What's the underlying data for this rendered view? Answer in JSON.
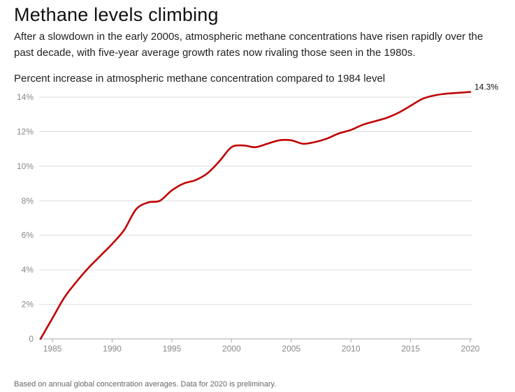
{
  "header": {
    "title": "Methane levels climbing",
    "subtitle": "After a slowdown in the early 2000s, atmospheric methane concentrations have risen rapidly over the past decade, with five-year average growth rates now rivaling those seen in the 1980s.",
    "chart_label": "Percent increase in atmospheric methane concentration compared to 1984 level"
  },
  "footer": {
    "note": "Based on annual global concentration averages. Data for 2020 is preliminary."
  },
  "colors": {
    "line": "#c00000",
    "grid": "#dddddd",
    "axis": "#aaaaaa",
    "tick_text": "#888888"
  },
  "chart_data": {
    "type": "line",
    "title": "Methane levels climbing",
    "ylabel": "Percent increase in atmospheric methane concentration compared to 1984 level",
    "xlabel": "",
    "x": [
      1984,
      1985,
      1986,
      1987,
      1988,
      1989,
      1990,
      1991,
      1992,
      1993,
      1994,
      1995,
      1996,
      1997,
      1998,
      1999,
      2000,
      2001,
      2002,
      2003,
      2004,
      2005,
      2006,
      2007,
      2008,
      2009,
      2010,
      2011,
      2012,
      2013,
      2014,
      2015,
      2016,
      2017,
      2018,
      2019,
      2020
    ],
    "series": [
      {
        "values": [
          0.0,
          1.2,
          2.4,
          3.3,
          4.1,
          4.8,
          5.5,
          6.3,
          7.5,
          7.9,
          8.0,
          8.6,
          9.0,
          9.2,
          9.6,
          10.3,
          11.1,
          11.2,
          11.1,
          11.3,
          11.5,
          11.5,
          11.3,
          11.4,
          11.6,
          11.9,
          12.1,
          12.4,
          12.6,
          12.8,
          13.1,
          13.5,
          13.9,
          14.1,
          14.2,
          14.25,
          14.3
        ]
      }
    ],
    "end_label": "14.3%",
    "x_ticks": [
      1985,
      1990,
      1995,
      2000,
      2005,
      2010,
      2015,
      2020
    ],
    "x_tick_labels": [
      "1985",
      "1990",
      "1995",
      "2000",
      "2005",
      "2010",
      "2015",
      "2020"
    ],
    "y_ticks": [
      0,
      2,
      4,
      6,
      8,
      10,
      12,
      14
    ],
    "y_tick_labels": [
      "0",
      "2%",
      "4%",
      "6%",
      "8%",
      "10%",
      "12%",
      "14%"
    ],
    "xlim": [
      1984,
      2020
    ],
    "ylim": [
      0,
      14
    ],
    "grid": true,
    "legend": "none"
  }
}
